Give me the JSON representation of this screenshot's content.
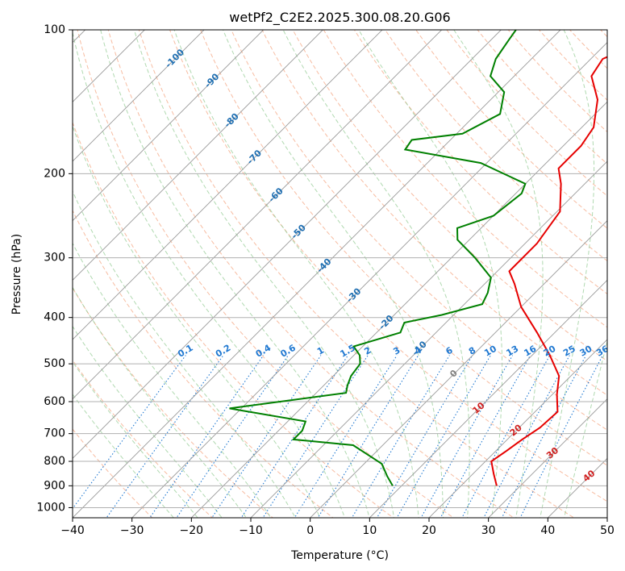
{
  "chart_data": {
    "type": "line",
    "title": "wetPf2_C2E2.2025.300.08.20.G06",
    "xlabel": "Temperature (°C)",
    "ylabel": "Pressure (hPa)",
    "xlim": [
      -40,
      50
    ],
    "ylim": [
      1050,
      100
    ],
    "x_ticks": [
      -40,
      -30,
      -20,
      -10,
      0,
      10,
      20,
      30,
      40,
      50
    ],
    "x_tick_labels": [
      "−40",
      "−30",
      "−20",
      "−10",
      "0",
      "10",
      "20",
      "30",
      "40",
      "50"
    ],
    "y_ticks": [
      100,
      200,
      300,
      400,
      500,
      600,
      700,
      800,
      900,
      1000
    ],
    "y_tick_labels": [
      "100",
      "200",
      "300",
      "400",
      "500",
      "600",
      "700",
      "800",
      "900",
      "1000"
    ],
    "grid": true,
    "colors": {
      "temperature": "#e60000",
      "dewpoint": "#008000",
      "isotherm": "#999999",
      "dry_adiabat": "#f4a582",
      "moist_adiabat": "#8fc98f",
      "mixing_ratio": "#1f78d1",
      "isotherm_label": "#1f6fb2",
      "dry_label": "#d02020",
      "zero_label": "#808080"
    },
    "series": [
      {
        "name": "Temperature",
        "color": "#e60000",
        "points": [
          [
            26.0,
            900
          ],
          [
            23.5,
            850
          ],
          [
            21.0,
            800
          ],
          [
            21.8,
            760
          ],
          [
            22.5,
            720
          ],
          [
            23.5,
            680
          ],
          [
            23.8,
            630
          ],
          [
            20.8,
            580
          ],
          [
            18.0,
            530
          ],
          [
            13.0,
            480
          ],
          [
            7.0,
            430
          ],
          [
            0.0,
            380
          ],
          [
            -5.0,
            340
          ],
          [
            -8.0,
            320
          ],
          [
            -8.0,
            300
          ],
          [
            -8.0,
            280
          ],
          [
            -9.5,
            240
          ],
          [
            -14.0,
            210
          ],
          [
            -17.0,
            195
          ],
          [
            -17.0,
            175
          ],
          [
            -18.0,
            160
          ],
          [
            -22.0,
            140
          ],
          [
            -27.0,
            125
          ],
          [
            -28.0,
            115
          ],
          [
            -25.0,
            108
          ],
          [
            -20.0,
            100
          ]
        ]
      },
      {
        "name": "Dewpoint",
        "color": "#008000",
        "points": [
          [
            8.5,
            900
          ],
          [
            6.0,
            860
          ],
          [
            3.0,
            810
          ],
          [
            0.8,
            790
          ],
          [
            -5.0,
            740
          ],
          [
            -16.0,
            720
          ],
          [
            -16.0,
            690
          ],
          [
            -17.0,
            660
          ],
          [
            -32.0,
            620
          ],
          [
            -15.0,
            575
          ],
          [
            -16.0,
            555
          ],
          [
            -17.0,
            530
          ],
          [
            -17.5,
            500
          ],
          [
            -19.0,
            480
          ],
          [
            -21.5,
            460
          ],
          [
            -16.0,
            430
          ],
          [
            -17.0,
            410
          ],
          [
            -12.0,
            395
          ],
          [
            -7.0,
            375
          ],
          [
            -8.0,
            355
          ],
          [
            -10.0,
            330
          ],
          [
            -16.0,
            300
          ],
          [
            -22.0,
            275
          ],
          [
            -24.0,
            260
          ],
          [
            -20.0,
            245
          ],
          [
            -19.0,
            220
          ],
          [
            -20.0,
            210
          ],
          [
            -31.0,
            190
          ],
          [
            -46.0,
            178
          ],
          [
            -46.5,
            170
          ],
          [
            -39.0,
            165
          ],
          [
            -36.0,
            150
          ],
          [
            -39.0,
            135
          ],
          [
            -44.0,
            125
          ],
          [
            -46.0,
            115
          ],
          [
            -47.0,
            105
          ],
          [
            -47.5,
            100
          ]
        ]
      }
    ],
    "isotherm_labels": [
      {
        "text": "-100",
        "t": -100,
        "p": 115
      },
      {
        "text": "-90",
        "t": -90,
        "p": 128
      },
      {
        "text": "-80",
        "t": -80,
        "p": 155
      },
      {
        "text": "-70",
        "t": -70,
        "p": 185
      },
      {
        "text": "-60",
        "t": -60,
        "p": 222
      },
      {
        "text": "-50",
        "t": -50,
        "p": 265
      },
      {
        "text": "-40",
        "t": -40,
        "p": 312
      },
      {
        "text": "-30",
        "t": -30,
        "p": 360
      },
      {
        "text": "-20",
        "t": -20,
        "p": 410
      },
      {
        "text": "-10",
        "t": -10,
        "p": 465
      },
      {
        "text": "0",
        "t": 0,
        "p": 525
      }
    ],
    "mixing_ratio_labels": [
      "0.1",
      "0.2",
      "0.4",
      "0.6",
      "1",
      "1.5",
      "2",
      "3",
      "4",
      "6",
      "8",
      "10",
      "13",
      "16",
      "20",
      "25",
      "30",
      "36"
    ],
    "mixing_ratio_values": [
      0.1,
      0.2,
      0.4,
      0.6,
      1,
      1.5,
      2,
      3,
      4,
      6,
      8,
      10,
      13,
      16,
      20,
      25,
      30,
      36
    ],
    "mixing_ratio_label_pressure": 480,
    "dry_adiabat_labels": [
      {
        "text": "10",
        "t": 10,
        "p": 620
      },
      {
        "text": "20",
        "t": 20,
        "p": 690
      },
      {
        "text": "30",
        "t": 30,
        "p": 770
      },
      {
        "text": "40",
        "t": 40,
        "p": 860
      }
    ]
  }
}
